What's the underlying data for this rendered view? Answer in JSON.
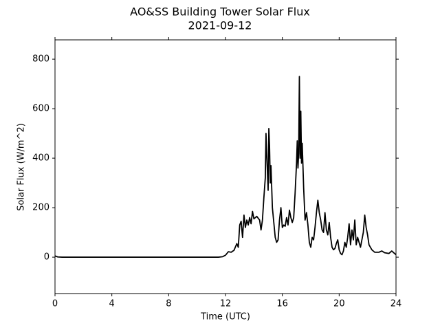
{
  "chart_data": {
    "type": "line",
    "title": "AO&SS Building Tower Solar Flux",
    "subtitle": "2021-09-12",
    "xlabel": "Time (UTC)",
    "ylabel": "Solar Flux (W/m^2)",
    "xlim": [
      0,
      24
    ],
    "xticks": [
      0,
      4,
      8,
      12,
      16,
      20,
      24
    ],
    "ylim": [
      -147,
      878
    ],
    "yticks": [
      0,
      200,
      400,
      600,
      800
    ],
    "series": [
      {
        "name": "Solar Flux",
        "color": "#000000",
        "x": [
          0,
          0.2,
          0.5,
          11.5,
          11.8,
          12.0,
          12.2,
          12.4,
          12.6,
          12.8,
          12.9,
          13.0,
          13.1,
          13.2,
          13.3,
          13.4,
          13.5,
          13.6,
          13.7,
          13.8,
          13.9,
          14.0,
          14.2,
          14.4,
          14.5,
          14.6,
          14.7,
          14.8,
          14.85,
          14.9,
          15.0,
          15.05,
          15.1,
          15.15,
          15.2,
          15.3,
          15.4,
          15.5,
          15.6,
          15.7,
          15.8,
          15.9,
          16.0,
          16.1,
          16.2,
          16.3,
          16.4,
          16.5,
          16.6,
          16.7,
          16.8,
          16.9,
          17.0,
          17.05,
          17.1,
          17.15,
          17.2,
          17.25,
          17.3,
          17.35,
          17.4,
          17.5,
          17.6,
          17.7,
          17.8,
          17.9,
          18.0,
          18.1,
          18.2,
          18.3,
          18.4,
          18.5,
          18.6,
          18.7,
          18.8,
          18.9,
          19.0,
          19.1,
          19.2,
          19.3,
          19.4,
          19.5,
          19.6,
          19.7,
          19.8,
          19.9,
          20.0,
          20.1,
          20.2,
          20.3,
          20.4,
          20.5,
          20.6,
          20.7,
          20.8,
          20.9,
          21.0,
          21.1,
          21.2,
          21.3,
          21.4,
          21.5,
          21.6,
          21.7,
          21.8,
          21.9,
          22.0,
          22.1,
          22.3,
          22.5,
          22.8,
          23.0,
          23.2,
          23.5,
          23.7,
          23.9,
          24.0
        ],
        "values": [
          5,
          1,
          0,
          0,
          2,
          8,
          22,
          20,
          28,
          55,
          40,
          130,
          145,
          80,
          170,
          120,
          150,
          130,
          160,
          135,
          185,
          155,
          165,
          150,
          110,
          150,
          240,
          320,
          500,
          420,
          270,
          520,
          450,
          300,
          370,
          200,
          140,
          80,
          60,
          70,
          150,
          200,
          120,
          130,
          125,
          160,
          130,
          190,
          160,
          140,
          160,
          260,
          380,
          470,
          360,
          420,
          730,
          400,
          590,
          380,
          460,
          280,
          150,
          180,
          130,
          60,
          40,
          80,
          70,
          120,
          180,
          230,
          180,
          150,
          110,
          100,
          180,
          110,
          90,
          140,
          80,
          40,
          30,
          35,
          55,
          70,
          30,
          15,
          10,
          25,
          60,
          40,
          80,
          135,
          50,
          110,
          70,
          150,
          50,
          80,
          60,
          40,
          70,
          100,
          170,
          120,
          90,
          50,
          30,
          20,
          20,
          25,
          18,
          15,
          25,
          15,
          10
        ]
      }
    ]
  }
}
